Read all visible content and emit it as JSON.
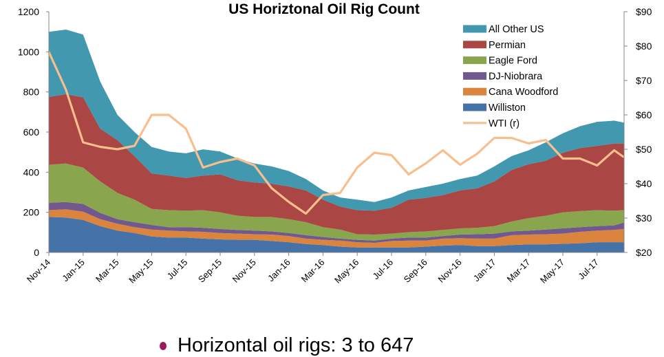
{
  "chart_data": {
    "type": "area",
    "stacked": true,
    "title": "US Horiztonal Oil Rig Count",
    "xlabel": "",
    "ylabel": "",
    "x": [
      "2014-11-01",
      "2014-12-01",
      "2015-01-01",
      "2015-02-01",
      "2015-03-01",
      "2015-04-01",
      "2015-05-01",
      "2015-06-01",
      "2015-07-01",
      "2015-08-01",
      "2015-09-01",
      "2015-10-01",
      "2015-11-01",
      "2015-12-01",
      "2016-01-01",
      "2016-02-01",
      "2016-03-01",
      "2016-04-01",
      "2016-05-01",
      "2016-06-01",
      "2016-07-01",
      "2016-08-01",
      "2016-09-01",
      "2016-10-01",
      "2016-11-01",
      "2016-12-01",
      "2017-01-01",
      "2017-02-01",
      "2017-03-01",
      "2017-04-01",
      "2017-05-01",
      "2017-06-01",
      "2017-07-01",
      "2017-08-01",
      "2017-08-18"
    ],
    "x_tick_labels": [
      "Nov-14",
      "Jan-15",
      "Mar-15",
      "May-15",
      "Jul-15",
      "Sep-15",
      "Nov-15",
      "Jan-16",
      "Mar-16",
      "May-16",
      "Jul-16",
      "Sep-16",
      "Nov-16",
      "Jan-17",
      "Mar-17",
      "May-17",
      "Jul-17"
    ],
    "ylim": [
      0,
      1200
    ],
    "y_ticks": [
      0,
      200,
      400,
      600,
      800,
      1000,
      1200
    ],
    "y2lim": [
      20,
      90
    ],
    "y2_ticks": [
      "$20",
      "$30",
      "$40",
      "$50",
      "$60",
      "$70",
      "$80",
      "$90"
    ],
    "grid": false,
    "legend_position": "top-right",
    "series": [
      {
        "name": "Williston",
        "color": "#4572A7",
        "values": [
          177,
          174,
          162,
          131,
          109,
          97,
          80,
          74,
          74,
          69,
          65,
          63,
          63,
          57,
          51,
          42,
          37,
          29,
          25,
          25,
          25,
          25,
          29,
          34,
          37,
          32,
          32,
          37,
          40,
          40,
          43,
          46,
          51,
          51,
          51
        ]
      },
      {
        "name": "Cana Woodford",
        "color": "#DB843D",
        "values": [
          34,
          41,
          41,
          35,
          34,
          29,
          34,
          35,
          31,
          34,
          32,
          31,
          28,
          32,
          31,
          27,
          26,
          30,
          26,
          23,
          32,
          34,
          30,
          35,
          34,
          37,
          37,
          49,
          49,
          51,
          51,
          57,
          58,
          61,
          66
        ]
      },
      {
        "name": "DJ-Niobrara",
        "color": "#71588F",
        "values": [
          37,
          36,
          39,
          31,
          23,
          25,
          23,
          17,
          21,
          20,
          20,
          18,
          18,
          16,
          15,
          17,
          14,
          10,
          12,
          11,
          12,
          15,
          15,
          13,
          18,
          22,
          25,
          19,
          20,
          23,
          26,
          23,
          22,
          23,
          32
        ]
      },
      {
        "name": "Eagle Ford",
        "color": "#89A54E",
        "values": [
          189,
          192,
          181,
          157,
          131,
          112,
          80,
          85,
          82,
          88,
          83,
          71,
          68,
          72,
          69,
          65,
          49,
          45,
          28,
          30,
          25,
          27,
          31,
          30,
          31,
          32,
          37,
          49,
          62,
          69,
          80,
          80,
          80,
          73,
          62
        ]
      },
      {
        "name": "Permian",
        "color": "#AA4644",
        "values": [
          338,
          346,
          350,
          263,
          263,
          217,
          177,
          172,
          163,
          172,
          189,
          177,
          172,
          166,
          163,
          158,
          137,
          115,
          120,
          119,
          129,
          162,
          167,
          174,
          189,
          197,
          223,
          257,
          269,
          274,
          297,
          314,
          320,
          335,
          332
        ]
      },
      {
        "name": "All Other US",
        "color": "#4198AF",
        "values": [
          325,
          322,
          313,
          234,
          126,
          120,
          132,
          120,
          123,
          131,
          114,
          109,
          94,
          86,
          77,
          57,
          46,
          45,
          52,
          43,
          51,
          46,
          54,
          57,
          57,
          63,
          75,
          69,
          69,
          92,
          97,
          109,
          120,
          114,
          104
        ]
      }
    ],
    "line_series": {
      "name": "WTI (r)",
      "axis": "right",
      "color": "#F9BE8E",
      "values": [
        78.3,
        67.3,
        52,
        50.7,
        50,
        51,
        60,
        60,
        56,
        44.7,
        46.3,
        47.3,
        45.3,
        38.7,
        34.7,
        31.3,
        36.7,
        37.3,
        44.7,
        49,
        48.3,
        42.7,
        45.9,
        49.7,
        45.5,
        48.7,
        53.3,
        53.3,
        51.7,
        52.7,
        47.3,
        47.3,
        45.3,
        49.7,
        47.7
      ]
    },
    "legend_order": [
      "All Other US",
      "Permian",
      "Eagle Ford",
      "DJ-Niobrara",
      "Cana Woodford",
      "Williston",
      "WTI (r)"
    ]
  },
  "bullet": {
    "text": "Horizontal oil rigs:  3 to 647",
    "color": "#9b1b5a"
  }
}
